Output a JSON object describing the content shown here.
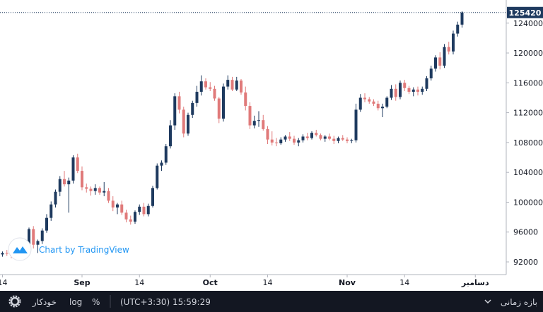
{
  "chart_data": {
    "type": "candlestick",
    "y_axis": {
      "ylim": [
        90300,
        127100
      ],
      "ticks": [
        92000,
        96000,
        100000,
        104000,
        108000,
        112000,
        116000,
        120000,
        124000
      ]
    },
    "x_axis": {
      "labels": [
        {
          "label": "14",
          "index": 0,
          "bold": false
        },
        {
          "label": "Sep",
          "index": 18,
          "bold": true
        },
        {
          "label": "14",
          "index": 31,
          "bold": false
        },
        {
          "label": "Oct",
          "index": 47,
          "bold": true
        },
        {
          "label": "14",
          "index": 60,
          "bold": false
        },
        {
          "label": "Nov",
          "index": 78,
          "bold": true
        },
        {
          "label": "14",
          "index": 91,
          "bold": false
        },
        {
          "label": "دسامبر",
          "index": 107,
          "bold": true
        }
      ]
    },
    "last_price": 125420,
    "last_price_label": "125420",
    "candles": [
      [
        93000,
        93400,
        92700,
        93200
      ],
      [
        93200,
        93600,
        92800,
        93100
      ],
      [
        93100,
        93500,
        92500,
        92800
      ],
      [
        92800,
        93200,
        92400,
        92900
      ],
      [
        92900,
        93300,
        92600,
        93100
      ],
      [
        93100,
        94200,
        92900,
        94000
      ],
      [
        94000,
        96600,
        93600,
        96400
      ],
      [
        96400,
        96800,
        93800,
        94300
      ],
      [
        94300,
        95000,
        93200,
        94800
      ],
      [
        94800,
        96500,
        94400,
        96200
      ],
      [
        96200,
        98400,
        95900,
        97900
      ],
      [
        97900,
        100100,
        97500,
        99700
      ],
      [
        99700,
        101700,
        99300,
        101400
      ],
      [
        101400,
        103500,
        100800,
        103100
      ],
      [
        103100,
        104200,
        102100,
        102400
      ],
      [
        102400,
        103300,
        98600,
        102900
      ],
      [
        102900,
        106300,
        102500,
        106000
      ],
      [
        106000,
        106500,
        103900,
        104200
      ],
      [
        104200,
        104800,
        101600,
        102000
      ],
      [
        102000,
        102500,
        101300,
        101800
      ],
      [
        101800,
        102100,
        100900,
        101500
      ],
      [
        101500,
        102400,
        101000,
        101900
      ],
      [
        101900,
        102100,
        101000,
        101300
      ],
      [
        101300,
        102700,
        100800,
        101500
      ],
      [
        101500,
        101900,
        99900,
        100200
      ],
      [
        100200,
        100800,
        98800,
        99300
      ],
      [
        99300,
        99900,
        98400,
        99700
      ],
      [
        99700,
        100200,
        98300,
        98600
      ],
      [
        98600,
        99000,
        97300,
        97700
      ],
      [
        97700,
        98200,
        97000,
        97400
      ],
      [
        97400,
        98900,
        97100,
        98700
      ],
      [
        98700,
        99700,
        98300,
        99400
      ],
      [
        99400,
        99900,
        98100,
        98400
      ],
      [
        98400,
        99800,
        98100,
        99500
      ],
      [
        99500,
        102200,
        99300,
        101900
      ],
      [
        101900,
        105200,
        101700,
        104900
      ],
      [
        104900,
        105600,
        104200,
        105300
      ],
      [
        105300,
        107800,
        105000,
        107500
      ],
      [
        107500,
        111000,
        107200,
        110300
      ],
      [
        110300,
        114600,
        109700,
        114200
      ],
      [
        114200,
        114800,
        111900,
        112400
      ],
      [
        112400,
        112800,
        108700,
        109200
      ],
      [
        109200,
        112000,
        108900,
        111700
      ],
      [
        111700,
        113600,
        111300,
        113300
      ],
      [
        113300,
        115600,
        112800,
        114800
      ],
      [
        114800,
        117000,
        114300,
        116200
      ],
      [
        116200,
        116600,
        115100,
        115400
      ],
      [
        115400,
        116100,
        114900,
        115200
      ],
      [
        115200,
        115600,
        113600,
        113900
      ],
      [
        113900,
        114100,
        110600,
        111200
      ],
      [
        111200,
        115900,
        110800,
        115500
      ],
      [
        115500,
        117000,
        115100,
        116400
      ],
      [
        116400,
        116800,
        114900,
        115100
      ],
      [
        115100,
        116800,
        114900,
        116300
      ],
      [
        116300,
        116500,
        114400,
        114700
      ],
      [
        114700,
        115500,
        112300,
        112900
      ],
      [
        112900,
        113400,
        109800,
        110300
      ],
      [
        110300,
        111600,
        109900,
        110900
      ],
      [
        110900,
        112200,
        110100,
        111000
      ],
      [
        111000,
        111700,
        109600,
        109800
      ],
      [
        109800,
        110200,
        107800,
        108400
      ],
      [
        108400,
        109500,
        107600,
        108000
      ],
      [
        108000,
        108600,
        107500,
        107900
      ],
      [
        107900,
        108700,
        107700,
        108400
      ],
      [
        108400,
        109000,
        108100,
        108800
      ],
      [
        108800,
        109400,
        108200,
        108500
      ],
      [
        108500,
        108900,
        107700,
        108000
      ],
      [
        108000,
        108600,
        107500,
        108300
      ],
      [
        108300,
        109100,
        108000,
        108800
      ],
      [
        108800,
        109300,
        108300,
        108600
      ],
      [
        108600,
        109500,
        108400,
        109300
      ],
      [
        109300,
        109700,
        108800,
        109000
      ],
      [
        109000,
        109200,
        108300,
        108500
      ],
      [
        108500,
        109000,
        108100,
        108800
      ],
      [
        108800,
        109200,
        108300,
        108500
      ],
      [
        108500,
        108900,
        107800,
        108200
      ],
      [
        108200,
        108800,
        107900,
        108600
      ],
      [
        108600,
        109000,
        108200,
        108400
      ],
      [
        108400,
        108700,
        107900,
        108200
      ],
      [
        108200,
        108500,
        107900,
        108300
      ],
      [
        108300,
        113200,
        108000,
        112400
      ],
      [
        112400,
        114500,
        112100,
        114000
      ],
      [
        114000,
        114600,
        113400,
        113800
      ],
      [
        113800,
        114100,
        113200,
        113500
      ],
      [
        113500,
        113800,
        112900,
        113200
      ],
      [
        113200,
        113600,
        112300,
        112600
      ],
      [
        112600,
        113200,
        111400,
        112800
      ],
      [
        112800,
        114200,
        112600,
        114000
      ],
      [
        114000,
        115700,
        113700,
        115200
      ],
      [
        115200,
        115800,
        113600,
        114100
      ],
      [
        114100,
        116300,
        113800,
        116000
      ],
      [
        116000,
        116400,
        114900,
        115300
      ],
      [
        115300,
        115600,
        114500,
        114800
      ],
      [
        114800,
        115400,
        114200,
        115100
      ],
      [
        115100,
        115500,
        114300,
        114800
      ],
      [
        114800,
        115500,
        114400,
        115200
      ],
      [
        115200,
        116900,
        114900,
        116600
      ],
      [
        116600,
        118300,
        116300,
        117900
      ],
      [
        117900,
        119700,
        117500,
        119400
      ],
      [
        119400,
        120100,
        117800,
        118300
      ],
      [
        118300,
        121200,
        118000,
        120800
      ],
      [
        120800,
        121500,
        119800,
        120200
      ],
      [
        120200,
        123000,
        119800,
        122600
      ],
      [
        122600,
        124200,
        122200,
        123800
      ],
      [
        123800,
        125600,
        123400,
        125420
      ]
    ]
  },
  "colors": {
    "up": "#1e3a5f",
    "down": "#e07a7a",
    "last_price_bg": "#1e3a5f",
    "toolbar_bg": "#131722",
    "logo": "#2196f3"
  },
  "watermark": {
    "text": "Chart by TradingView",
    "icon": "tradingview-logo-icon"
  },
  "toolbar": {
    "interval_label": "بازه زمانی",
    "chevron_icon": "chevron-down-icon",
    "clock": "(UTC+3:30) 15:59:29",
    "percent_label": "%",
    "log_label": "log",
    "auto_label": "خودکار",
    "settings_icon": "gear-icon"
  }
}
